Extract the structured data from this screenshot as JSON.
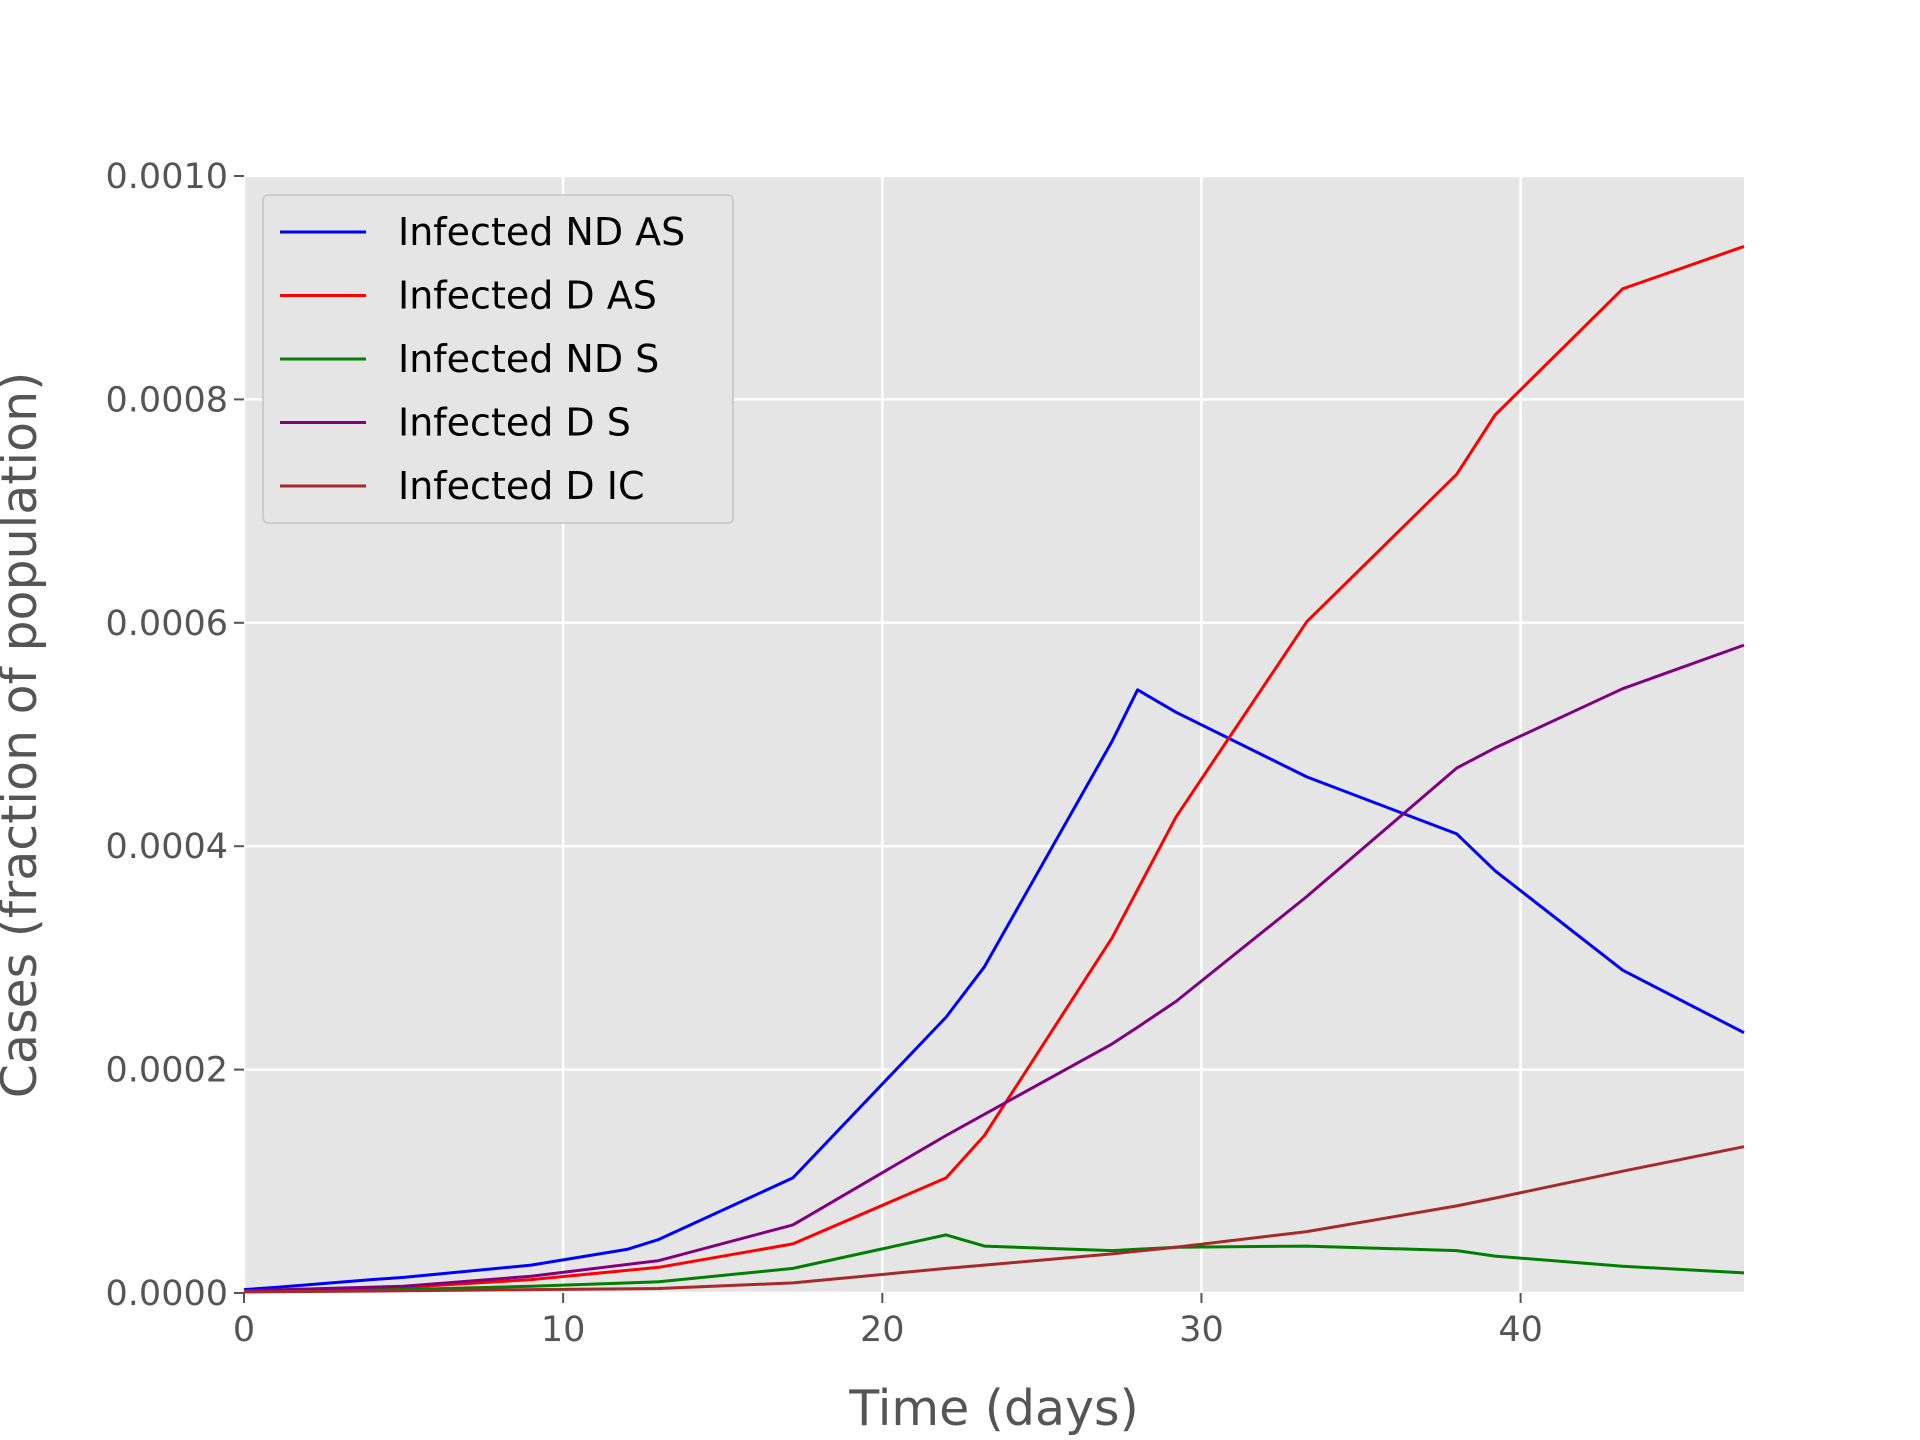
{
  "chart_data": {
    "type": "line",
    "title": "",
    "xlabel": "Time (days)",
    "ylabel": "Cases (fraction of population)",
    "xlim": [
      0,
      47
    ],
    "ylim": [
      0,
      0.001
    ],
    "xticks": [
      0,
      10,
      20,
      30,
      40
    ],
    "xtick_labels": [
      "0",
      "10",
      "20",
      "30",
      "40"
    ],
    "yticks": [
      0,
      0.0002,
      0.0004,
      0.0006,
      0.0008,
      0.001
    ],
    "ytick_labels": [
      "0.0000",
      "0.0002",
      "0.0004",
      "0.0006",
      "0.0008",
      "0.0010"
    ],
    "grid": true,
    "legend_position": "top-left",
    "series": [
      {
        "name": "Infected ND AS",
        "color": "#0000ff",
        "x": [
          0,
          1,
          4,
          5,
          9,
          12,
          13,
          17.2,
          22,
          23.2,
          27.2,
          28,
          29.2,
          33.3,
          38,
          39.2,
          43.2,
          47
        ],
        "y": [
          3e-06,
          5e-06,
          1.2e-05,
          1.4e-05,
          2.5e-05,
          3.9e-05,
          4.8e-05,
          0.000103,
          0.000247,
          0.000292,
          0.000494,
          0.00054,
          0.00052,
          0.000462,
          0.000411,
          0.000378,
          0.000289,
          0.000233
        ]
      },
      {
        "name": "Infected D AS",
        "color": "#ff0000",
        "x": [
          0,
          5,
          9,
          13,
          17.2,
          22,
          23.2,
          27.2,
          29.2,
          33.3,
          38,
          39.2,
          43.2,
          47
        ],
        "y": [
          2e-06,
          5e-06,
          1.2e-05,
          2.3e-05,
          4.4e-05,
          0.000103,
          0.000141,
          0.000318,
          0.000426,
          0.000601,
          0.000733,
          0.000786,
          0.000899,
          0.000937
        ]
      },
      {
        "name": "Infected ND S",
        "color": "#008000",
        "x": [
          0,
          5,
          9,
          13,
          17.2,
          22,
          23.2,
          27.2,
          29.2,
          33.3,
          38,
          39.2,
          43.2,
          47
        ],
        "y": [
          1e-06,
          3e-06,
          6e-06,
          1e-05,
          2.2e-05,
          5.2e-05,
          4.2e-05,
          3.8e-05,
          4.1e-05,
          4.2e-05,
          3.8e-05,
          3.3e-05,
          2.4e-05,
          1.8e-05
        ]
      },
      {
        "name": "Infected D S",
        "color": "#800080",
        "x": [
          0,
          5,
          9,
          13,
          17.2,
          22,
          23.2,
          27.2,
          28,
          29.2,
          33.3,
          38,
          39.2,
          43.2,
          47
        ],
        "y": [
          2e-06,
          6e-06,
          1.5e-05,
          2.9e-05,
          6.1e-05,
          0.000141,
          0.00016,
          0.000223,
          0.000238,
          0.000261,
          0.000355,
          0.00047,
          0.000488,
          0.000541,
          0.00058
        ]
      },
      {
        "name": "Infected D IC",
        "color": "#a52a2a",
        "x": [
          0,
          5,
          9,
          13,
          17.2,
          22,
          23.2,
          27.2,
          29.2,
          33.3,
          38,
          39.2,
          43.2,
          47
        ],
        "y": [
          1e-06,
          2e-06,
          3e-06,
          4e-06,
          9e-06,
          2.2e-05,
          2.5e-05,
          3.5e-05,
          4.1e-05,
          5.5e-05,
          7.8e-05,
          8.5e-05,
          0.000109,
          0.000131
        ]
      }
    ]
  }
}
